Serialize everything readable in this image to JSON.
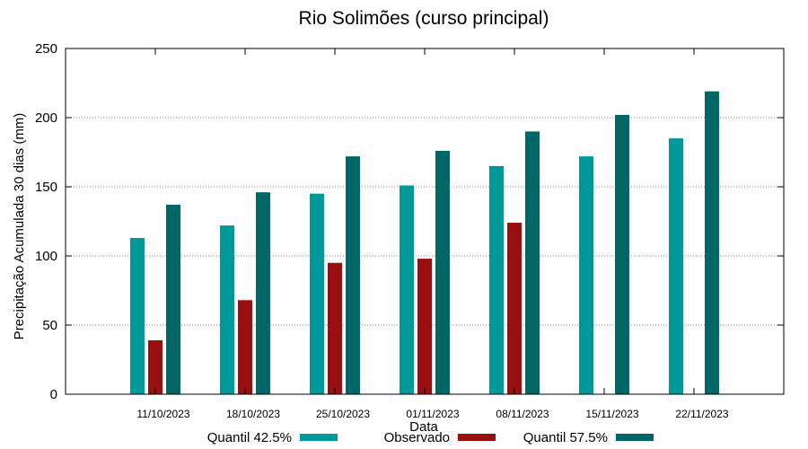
{
  "chart_data": {
    "type": "bar",
    "title": "Rio Solimões (curso principal)",
    "xlabel": "Data",
    "ylabel": "Precipitação Acumulada 30 dias (mm)",
    "ylim": [
      0,
      250
    ],
    "yticks": [
      0,
      50,
      100,
      150,
      200,
      250
    ],
    "grid": true,
    "legend_position": "bottom",
    "categories": [
      "11/10/2023",
      "18/10/2023",
      "25/10/2023",
      "01/11/2023",
      "08/11/2023",
      "15/11/2023",
      "22/11/2023"
    ],
    "series": [
      {
        "name": "Quantil 42.5%",
        "color": "#009999",
        "values": [
          113,
          122,
          145,
          151,
          165,
          172,
          185
        ]
      },
      {
        "name": "Observado",
        "color": "#990f0f",
        "values": [
          39,
          68,
          95,
          98,
          124,
          null,
          null
        ]
      },
      {
        "name": "Quantil 57.5%",
        "color": "#006666",
        "values": [
          137,
          146,
          172,
          176,
          190,
          202,
          219
        ]
      }
    ]
  }
}
